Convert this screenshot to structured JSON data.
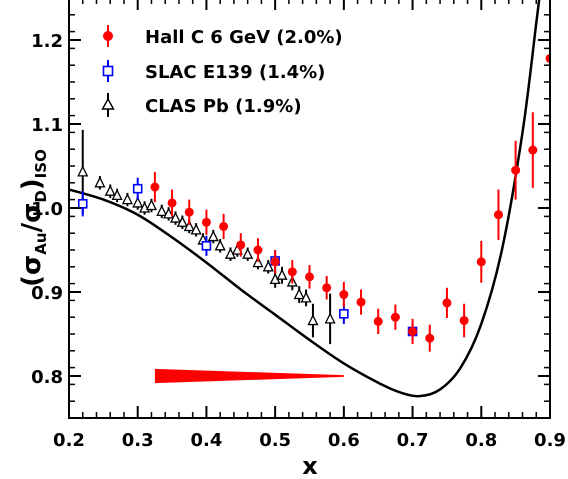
{
  "chart_data": {
    "type": "scatter",
    "xlabel": "x",
    "ylabel_main": "(σ",
    "ylabel_sub1": "Au",
    "ylabel_mid": "/σ",
    "ylabel_sub2": "D",
    "ylabel_end": ")",
    "ylabel_sub3": "ISO",
    "xlim": [
      0.2,
      0.9
    ],
    "ylim": [
      0.75,
      1.25
    ],
    "x_ticks": [
      {
        "value": 0.2,
        "label": "0.2"
      },
      {
        "value": 0.3,
        "label": "0.3"
      },
      {
        "value": 0.4,
        "label": "0.4"
      },
      {
        "value": 0.5,
        "label": "0.5"
      },
      {
        "value": 0.6,
        "label": "0.6"
      },
      {
        "value": 0.7,
        "label": "0.7"
      },
      {
        "value": 0.8,
        "label": "0.8"
      },
      {
        "value": 0.9,
        "label": "0.9"
      }
    ],
    "y_ticks": [
      {
        "value": 0.8,
        "label": "0.8"
      },
      {
        "value": 0.9,
        "label": "0.9"
      },
      {
        "value": 1.0,
        "label": "1.0"
      },
      {
        "value": 1.1,
        "label": "1.1"
      },
      {
        "value": 1.2,
        "label": "1.2"
      }
    ],
    "legend_position": "top-left",
    "series": [
      {
        "name": "Hall C 6 GeV (2.0%)",
        "marker": "filled-circle",
        "color": "#ff0000",
        "points": [
          {
            "x": 0.325,
            "y": 1.025,
            "err": 0.018
          },
          {
            "x": 0.35,
            "y": 1.006,
            "err": 0.016
          },
          {
            "x": 0.375,
            "y": 0.995,
            "err": 0.015
          },
          {
            "x": 0.4,
            "y": 0.983,
            "err": 0.015
          },
          {
            "x": 0.425,
            "y": 0.978,
            "err": 0.015
          },
          {
            "x": 0.45,
            "y": 0.956,
            "err": 0.014
          },
          {
            "x": 0.475,
            "y": 0.95,
            "err": 0.014
          },
          {
            "x": 0.5,
            "y": 0.936,
            "err": 0.014
          },
          {
            "x": 0.525,
            "y": 0.924,
            "err": 0.014
          },
          {
            "x": 0.55,
            "y": 0.918,
            "err": 0.014
          },
          {
            "x": 0.575,
            "y": 0.905,
            "err": 0.014
          },
          {
            "x": 0.6,
            "y": 0.897,
            "err": 0.015
          },
          {
            "x": 0.625,
            "y": 0.888,
            "err": 0.015
          },
          {
            "x": 0.65,
            "y": 0.865,
            "err": 0.015
          },
          {
            "x": 0.675,
            "y": 0.87,
            "err": 0.015
          },
          {
            "x": 0.7,
            "y": 0.853,
            "err": 0.015
          },
          {
            "x": 0.725,
            "y": 0.845,
            "err": 0.016
          },
          {
            "x": 0.75,
            "y": 0.887,
            "err": 0.018
          },
          {
            "x": 0.775,
            "y": 0.866,
            "err": 0.02
          },
          {
            "x": 0.8,
            "y": 0.936,
            "err": 0.025
          },
          {
            "x": 0.825,
            "y": 0.992,
            "err": 0.03
          },
          {
            "x": 0.85,
            "y": 1.045,
            "err": 0.035
          },
          {
            "x": 0.875,
            "y": 1.069,
            "err": 0.045
          },
          {
            "x": 0.9,
            "y": 1.178,
            "err": 0.06
          }
        ]
      },
      {
        "name": "SLAC E139 (1.4%)",
        "marker": "open-square",
        "color": "#0000ff",
        "points": [
          {
            "x": 0.22,
            "y": 1.005,
            "err": 0.015
          },
          {
            "x": 0.3,
            "y": 1.023,
            "err": 0.013
          },
          {
            "x": 0.4,
            "y": 0.955,
            "err": 0.012
          },
          {
            "x": 0.5,
            "y": 0.937,
            "err": 0.013
          },
          {
            "x": 0.6,
            "y": 0.874,
            "err": 0.012
          },
          {
            "x": 0.7,
            "y": 0.853,
            "err": 0.011
          }
        ]
      },
      {
        "name": "CLAS Pb (1.9%)",
        "marker": "open-triangle",
        "color": "#000000",
        "points": [
          {
            "x": 0.22,
            "y": 1.043,
            "err": 0.05
          },
          {
            "x": 0.245,
            "y": 1.03,
            "err": 0.008
          },
          {
            "x": 0.26,
            "y": 1.02,
            "err": 0.008
          },
          {
            "x": 0.27,
            "y": 1.015,
            "err": 0.008
          },
          {
            "x": 0.285,
            "y": 1.01,
            "err": 0.008
          },
          {
            "x": 0.3,
            "y": 1.006,
            "err": 0.008
          },
          {
            "x": 0.31,
            "y": 1.0,
            "err": 0.008
          },
          {
            "x": 0.32,
            "y": 1.003,
            "err": 0.008
          },
          {
            "x": 0.335,
            "y": 0.996,
            "err": 0.008
          },
          {
            "x": 0.345,
            "y": 0.993,
            "err": 0.008
          },
          {
            "x": 0.355,
            "y": 0.988,
            "err": 0.008
          },
          {
            "x": 0.365,
            "y": 0.983,
            "err": 0.008
          },
          {
            "x": 0.375,
            "y": 0.978,
            "err": 0.008
          },
          {
            "x": 0.385,
            "y": 0.974,
            "err": 0.008
          },
          {
            "x": 0.395,
            "y": 0.962,
            "err": 0.008
          },
          {
            "x": 0.41,
            "y": 0.966,
            "err": 0.008
          },
          {
            "x": 0.42,
            "y": 0.955,
            "err": 0.008
          },
          {
            "x": 0.435,
            "y": 0.945,
            "err": 0.008
          },
          {
            "x": 0.445,
            "y": 0.95,
            "err": 0.008
          },
          {
            "x": 0.46,
            "y": 0.945,
            "err": 0.008
          },
          {
            "x": 0.475,
            "y": 0.935,
            "err": 0.008
          },
          {
            "x": 0.49,
            "y": 0.93,
            "err": 0.008
          },
          {
            "x": 0.5,
            "y": 0.915,
            "err": 0.01
          },
          {
            "x": 0.51,
            "y": 0.92,
            "err": 0.01
          },
          {
            "x": 0.525,
            "y": 0.912,
            "err": 0.01
          },
          {
            "x": 0.535,
            "y": 0.897,
            "err": 0.01
          },
          {
            "x": 0.545,
            "y": 0.893,
            "err": 0.01
          },
          {
            "x": 0.555,
            "y": 0.866,
            "err": 0.02
          },
          {
            "x": 0.58,
            "y": 0.868,
            "err": 0.03
          }
        ]
      }
    ],
    "curve": [
      {
        "x": 0.2,
        "y": 1.022
      },
      {
        "x": 0.25,
        "y": 1.01
      },
      {
        "x": 0.3,
        "y": 0.992
      },
      {
        "x": 0.35,
        "y": 0.965
      },
      {
        "x": 0.4,
        "y": 0.935
      },
      {
        "x": 0.45,
        "y": 0.903
      },
      {
        "x": 0.5,
        "y": 0.873
      },
      {
        "x": 0.55,
        "y": 0.843
      },
      {
        "x": 0.6,
        "y": 0.815
      },
      {
        "x": 0.65,
        "y": 0.792
      },
      {
        "x": 0.68,
        "y": 0.781
      },
      {
        "x": 0.71,
        "y": 0.776
      },
      {
        "x": 0.74,
        "y": 0.784
      },
      {
        "x": 0.77,
        "y": 0.81
      },
      {
        "x": 0.8,
        "y": 0.862
      },
      {
        "x": 0.83,
        "y": 0.95
      },
      {
        "x": 0.86,
        "y": 1.09
      },
      {
        "x": 0.88,
        "y": 1.22
      },
      {
        "x": 0.886,
        "y": 1.26
      }
    ],
    "norm_band": {
      "x_start": 0.325,
      "x_end": 0.6,
      "y_center": 0.8,
      "half_height_start": 0.0085,
      "half_height_end": 0.001,
      "color": "#ff0000"
    },
    "colors": {
      "axis": "#000000",
      "curve": "#000000"
    }
  }
}
